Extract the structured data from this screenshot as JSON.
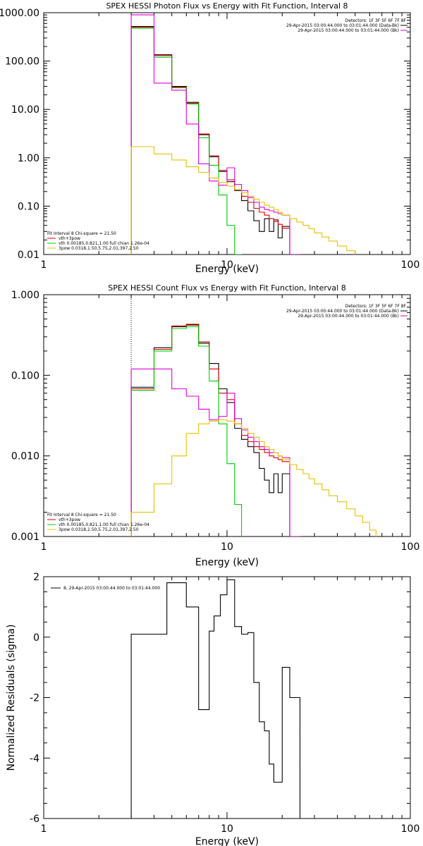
{
  "chart_data": [
    {
      "type": "line",
      "title": "SPEX HESSI Photon Flux vs Energy with Fit Function, Interval 8",
      "xlabel": "Energy (keV)",
      "ylabel": "",
      "xscale": "log",
      "yscale": "log",
      "xlim": [
        1,
        100
      ],
      "ylim": [
        0.01,
        1000
      ],
      "x_ticks": [
        "1",
        "10",
        "100"
      ],
      "y_ticks": [
        "0.01",
        "0.10",
        "1.00",
        "10.00",
        "100.00",
        "1000.00"
      ],
      "grid": false,
      "legend_top": [
        "Detectors: 1F 3F 5F 6F 7F 8F",
        "29-Apr-2015 03:00:44.000 to 03:01:44.000 (Data-Bk)",
        "29-Apr-2015 03:00:44.000 to 03:01:44.000 (Bk)"
      ],
      "legend_top_colors": [
        "",
        "#000000",
        "#dd00dd"
      ],
      "legend_fit": [
        "Fit Interval 8   Chi-square = 21.50",
        "vth+3pow",
        "vth 0.00185,0.821,1.00   full chian 1.26e-04",
        "3pow 0.0318,1.50,5.75,2.01,397,2.50"
      ],
      "legend_fit_colors": [
        "",
        "#dd0000",
        "#00cc00",
        "#e8c000"
      ],
      "threshold_x": 3,
      "series": [
        {
          "color": "#000000",
          "edges": [
            3,
            4,
            5,
            6,
            7,
            8,
            9,
            10,
            11,
            12,
            13,
            14,
            15,
            16,
            17,
            18,
            19,
            20,
            22,
            25
          ],
          "values": [
            520,
            135,
            30,
            14,
            3.0,
            1.05,
            0.52,
            0.32,
            0.21,
            0.13,
            0.08,
            0.05,
            0.03,
            0.055,
            0.03,
            0.052,
            0.022,
            0.038,
            0.01
          ]
        },
        {
          "color": "#dd0000",
          "edges": [
            3,
            4,
            5,
            6,
            7,
            8,
            9,
            10,
            11,
            12,
            13,
            14,
            15,
            16,
            17,
            18,
            19,
            20,
            22
          ],
          "values": [
            500,
            130,
            29,
            13.5,
            3.1,
            1.1,
            0.55,
            0.35,
            0.22,
            0.16,
            0.12,
            0.09,
            0.075,
            0.065,
            0.055,
            0.048,
            0.042,
            0.035
          ]
        },
        {
          "color": "#00cc00",
          "edges": [
            3,
            4,
            5,
            6,
            7,
            8,
            9,
            10,
            11,
            12
          ],
          "values": [
            480,
            120,
            28,
            13,
            2.6,
            0.7,
            0.17,
            0.04,
            0.01
          ]
        },
        {
          "color": "#dd00dd",
          "edges": [
            3,
            4,
            5,
            6,
            7,
            8,
            9,
            10,
            11,
            12,
            13,
            14,
            15,
            16,
            17,
            18,
            19,
            20,
            22,
            25
          ],
          "values": [
            900,
            35,
            25,
            5.0,
            0.75,
            0.33,
            0.27,
            0.62,
            0.28,
            0.21,
            0.15,
            0.12,
            0.095,
            0.085,
            0.08,
            0.075,
            0.07,
            0.065,
            0.01
          ]
        },
        {
          "color": "#e8c000",
          "edges": [
            3,
            4,
            5,
            6,
            7,
            8,
            9,
            10,
            11,
            12,
            13,
            14,
            15,
            16,
            17,
            18,
            19,
            20,
            22,
            24,
            26,
            28,
            30,
            33,
            36,
            40,
            45,
            50
          ],
          "values": [
            1.7,
            1.2,
            0.9,
            0.65,
            0.5,
            0.38,
            0.31,
            0.26,
            0.22,
            0.19,
            0.16,
            0.14,
            0.12,
            0.105,
            0.095,
            0.085,
            0.075,
            0.065,
            0.055,
            0.047,
            0.04,
            0.034,
            0.028,
            0.023,
            0.019,
            0.015,
            0.012
          ]
        }
      ]
    },
    {
      "type": "line",
      "title": "SPEX HESSI Count Flux vs Energy with Fit Function, Interval 8",
      "xlabel": "Energy (keV)",
      "ylabel": "",
      "xscale": "log",
      "yscale": "log",
      "xlim": [
        1,
        100
      ],
      "ylim": [
        0.001,
        1
      ],
      "x_ticks": [
        "1",
        "10",
        "100"
      ],
      "y_ticks": [
        "0.001",
        "0.010",
        "0.100",
        "1.000"
      ],
      "grid": false,
      "legend_top": [
        "Detectors: 1F 3F 5F 6F 7F 8F",
        "29-Apr-2015 03:00:44.000 to 03:01:44.000 (Data-Bk)",
        "29-Apr-2015 03:00:44.000 to 03:01:44.000 (Bk)"
      ],
      "legend_top_colors": [
        "",
        "#000000",
        "#dd00dd"
      ],
      "legend_fit": [
        "Fit Interval 8   Chi-square = 21.50",
        "vth+3pow",
        "vth 0.00185,0.821,1.00   full chian 1.26e-04",
        "3pow 0.0318,1.50,5.75,2.01,397,2.50"
      ],
      "legend_fit_colors": [
        "",
        "#dd0000",
        "#00cc00",
        "#e8c000"
      ],
      "threshold_x": 3,
      "series": [
        {
          "color": "#000000",
          "edges": [
            3,
            4,
            5,
            6,
            7,
            8,
            9,
            10,
            11,
            12,
            13,
            14,
            15,
            16,
            17,
            18,
            19,
            20,
            22,
            25
          ],
          "values": [
            0.071,
            0.22,
            0.4,
            0.42,
            0.25,
            0.14,
            0.068,
            0.046,
            0.022,
            0.016,
            0.013,
            0.011,
            0.007,
            0.005,
            0.0035,
            0.006,
            0.0035,
            0.006,
            0.001
          ]
        },
        {
          "color": "#dd0000",
          "edges": [
            3,
            4,
            5,
            6,
            7,
            8,
            9,
            10,
            11,
            12,
            13,
            14,
            15,
            16,
            17,
            18,
            19,
            20,
            22
          ],
          "values": [
            0.068,
            0.21,
            0.41,
            0.43,
            0.26,
            0.12,
            0.06,
            0.05,
            0.025,
            0.018,
            0.015,
            0.013,
            0.012,
            0.011,
            0.01,
            0.0095,
            0.009,
            0.0085
          ]
        },
        {
          "color": "#00cc00",
          "edges": [
            3,
            4,
            5,
            6,
            7,
            8,
            9,
            10,
            11,
            12
          ],
          "values": [
            0.065,
            0.2,
            0.38,
            0.4,
            0.23,
            0.085,
            0.025,
            0.008,
            0.0025,
            0.001
          ]
        },
        {
          "color": "#dd00dd",
          "edges": [
            3,
            4,
            5,
            6,
            7,
            8,
            9,
            10,
            11,
            12,
            13,
            14,
            15,
            16,
            17,
            18,
            19,
            20,
            22,
            25
          ],
          "values": [
            0.12,
            0.12,
            0.068,
            0.055,
            0.038,
            0.028,
            0.031,
            0.06,
            0.029,
            0.021,
            0.017,
            0.015,
            0.013,
            0.012,
            0.011,
            0.011,
            0.01,
            0.0095,
            0.001
          ]
        },
        {
          "color": "#e8c000",
          "edges": [
            3,
            4,
            5,
            6,
            7,
            8,
            9,
            10,
            11,
            12,
            13,
            14,
            15,
            16,
            17,
            18,
            19,
            20,
            22,
            24,
            26,
            28,
            30,
            33,
            36,
            40,
            45,
            50,
            55,
            60,
            65
          ],
          "values": [
            0.002,
            0.0045,
            0.01,
            0.019,
            0.025,
            0.027,
            0.028,
            0.027,
            0.025,
            0.022,
            0.019,
            0.017,
            0.015,
            0.013,
            0.012,
            0.011,
            0.01,
            0.009,
            0.0078,
            0.0068,
            0.006,
            0.0052,
            0.0045,
            0.0038,
            0.0032,
            0.0027,
            0.0022,
            0.0018,
            0.0015,
            0.0012
          ]
        }
      ]
    },
    {
      "type": "line",
      "title": "",
      "xlabel": "Energy (keV)",
      "ylabel": "Normalized Residuals (sigma)",
      "xscale": "log",
      "yscale": "linear",
      "xlim": [
        1,
        100
      ],
      "ylim": [
        -6,
        2
      ],
      "x_ticks": [
        "1",
        "10",
        "100"
      ],
      "y_ticks": [
        "-6",
        "-4",
        "-2",
        "0",
        "2"
      ],
      "grid": false,
      "legend_top": [
        "8, 29-Apr-2015 03:00:44.000 to 03:01:44.000"
      ],
      "legend_top_colors": [
        "#000000"
      ],
      "series": [
        {
          "color": "#000000",
          "edges": [
            3,
            4,
            4.7,
            5.3,
            6,
            7,
            8,
            8.5,
            9.2,
            10,
            11,
            12,
            13,
            14,
            15,
            16,
            17,
            18,
            19,
            20,
            21,
            22,
            24,
            25
          ],
          "values": [
            0.1,
            0.1,
            1.8,
            1.8,
            1.0,
            -2.4,
            0.2,
            0.7,
            1.4,
            1.9,
            0.35,
            0.1,
            0.15,
            -1.5,
            -2.8,
            -3.1,
            -4.2,
            -4.8,
            -4.8,
            -1.0,
            -1.0,
            -2.0,
            -2.0
          ]
        }
      ]
    }
  ]
}
